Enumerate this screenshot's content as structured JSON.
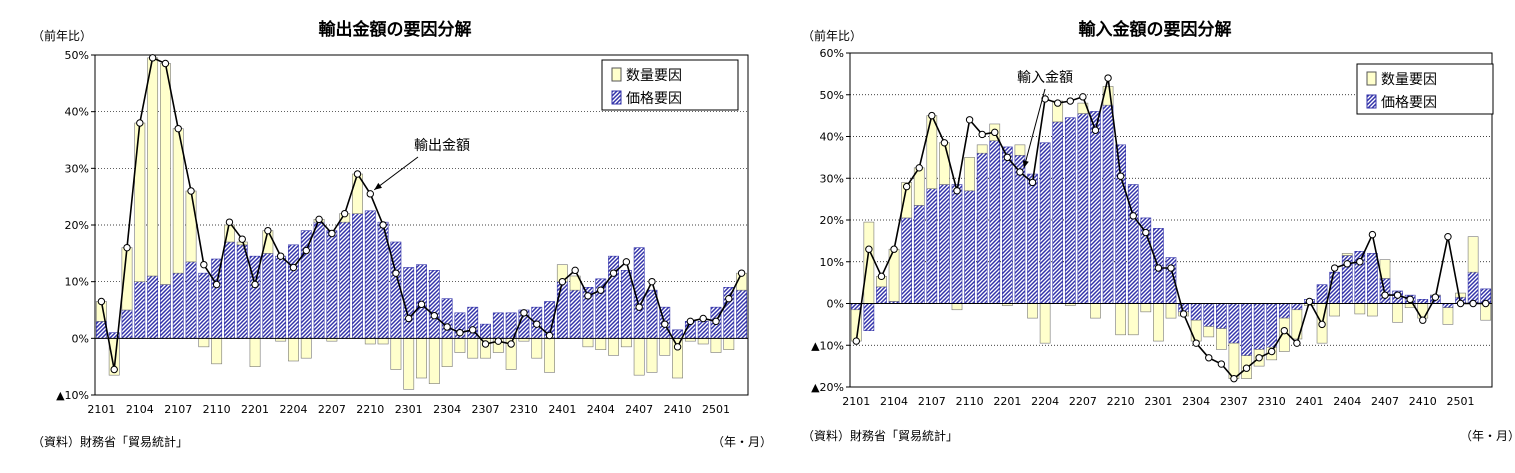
{
  "chart_data": [
    {
      "type": "bar",
      "title": "輸出金額の要因分解",
      "ylabel": "（前年比）",
      "xlabel": "（年・月）",
      "source": "（資料）財務省「貿易統計」",
      "annotation": "輸出金額",
      "ylim": [
        -10,
        50
      ],
      "yticks": [
        50,
        40,
        30,
        20,
        10,
        0,
        -10
      ],
      "ytick_labels": [
        "50%",
        "40%",
        "30%",
        "20%",
        "10%",
        "0%",
        "▲10%"
      ],
      "xtick_labels": [
        "2101",
        "2104",
        "2107",
        "2110",
        "2201",
        "2204",
        "2207",
        "2210",
        "2301",
        "2304",
        "2307",
        "2310",
        "2401",
        "2404",
        "2407",
        "2410",
        "2501"
      ],
      "legend": [
        "数量要因",
        "価格要因"
      ],
      "legend_position": "top-right",
      "grid": true,
      "colors": {
        "quantity": "#FFFFCC",
        "price": "#3333AA",
        "line": "#000000"
      },
      "categories": [
        "2101",
        "2102",
        "2103",
        "2104",
        "2105",
        "2106",
        "2107",
        "2108",
        "2109",
        "2110",
        "2111",
        "2112",
        "2201",
        "2202",
        "2203",
        "2204",
        "2205",
        "2206",
        "2207",
        "2208",
        "2209",
        "2210",
        "2211",
        "2212",
        "2301",
        "2302",
        "2303",
        "2304",
        "2305",
        "2306",
        "2307",
        "2308",
        "2309",
        "2310",
        "2311",
        "2312",
        "2401",
        "2402",
        "2403",
        "2404",
        "2405",
        "2406",
        "2407",
        "2408",
        "2409",
        "2410",
        "2411",
        "2412",
        "2501",
        "2502",
        "2503"
      ],
      "series": [
        {
          "name": "数量要因",
          "values": [
            3.5,
            -6.5,
            11.0,
            28.0,
            38.5,
            39.0,
            25.5,
            12.5,
            -1.5,
            -4.5,
            3.0,
            0.5,
            -5.0,
            4.0,
            -0.5,
            -4.0,
            -3.5,
            0.5,
            -0.5,
            1.5,
            7.0,
            -1.0,
            -1.0,
            -5.5,
            -9.0,
            -7.0,
            -8.0,
            -5.0,
            -2.5,
            -3.5,
            -3.5,
            -2.5,
            -5.5,
            -0.5,
            -3.5,
            -6.0,
            3.0,
            2.5,
            -1.5,
            -2.0,
            -3.0,
            -1.5,
            -6.5,
            -6.0,
            -3.0,
            -7.0,
            -0.5,
            -1.0,
            -2.5,
            -2.0,
            3.0
          ]
        },
        {
          "name": "価格要因",
          "values": [
            3.0,
            1.0,
            5.0,
            10.0,
            11.0,
            9.5,
            11.5,
            13.5,
            11.5,
            14.0,
            17.0,
            16.5,
            14.5,
            15.0,
            14.5,
            16.5,
            19.0,
            20.5,
            19.0,
            20.5,
            22.0,
            22.5,
            20.5,
            17.0,
            12.5,
            13.0,
            12.0,
            7.0,
            4.5,
            5.5,
            2.5,
            4.5,
            4.5,
            5.0,
            5.5,
            6.5,
            10.0,
            8.5,
            9.0,
            10.5,
            14.5,
            12.0,
            16.0,
            8.5,
            5.5,
            1.5,
            3.0,
            3.0,
            5.5,
            9.0,
            8.5
          ]
        },
        {
          "name": "輸出金額",
          "values": [
            6.5,
            -5.5,
            16.0,
            38.0,
            49.5,
            48.5,
            37.0,
            26.0,
            13.0,
            9.5,
            20.5,
            17.5,
            9.5,
            19.0,
            14.5,
            12.5,
            15.5,
            21.0,
            18.5,
            22.0,
            29.0,
            25.5,
            20.0,
            11.5,
            3.5,
            6.0,
            4.0,
            2.0,
            1.0,
            1.5,
            -1.0,
            -0.5,
            -1.0,
            4.5,
            2.5,
            0.5,
            10.0,
            12.0,
            7.5,
            8.5,
            11.5,
            13.5,
            5.5,
            10.0,
            2.5,
            -1.5,
            3.0,
            3.5,
            3.0,
            7.0,
            11.5
          ]
        }
      ]
    },
    {
      "type": "bar",
      "title": "輸入金額の要因分解",
      "ylabel": "（前年比）",
      "xlabel": "（年・月）",
      "source": "（資料）財務省「貿易統計」",
      "annotation": "輸入金額",
      "ylim": [
        -20,
        60
      ],
      "yticks": [
        60,
        50,
        40,
        30,
        20,
        10,
        0,
        -10,
        -20
      ],
      "ytick_labels": [
        "60%",
        "50%",
        "40%",
        "30%",
        "20%",
        "10%",
        "0%",
        "▲10%",
        "▲20%"
      ],
      "xtick_labels": [
        "2101",
        "2104",
        "2107",
        "2110",
        "2201",
        "2204",
        "2207",
        "2210",
        "2301",
        "2304",
        "2307",
        "2310",
        "2401",
        "2404",
        "2407",
        "2410",
        "2501"
      ],
      "legend": [
        "数量要因",
        "価格要因"
      ],
      "legend_position": "top-right",
      "grid": true,
      "colors": {
        "quantity": "#FFFFCC",
        "price": "#3333AA",
        "line": "#000000"
      },
      "categories": [
        "2101",
        "2102",
        "2103",
        "2104",
        "2105",
        "2106",
        "2107",
        "2108",
        "2109",
        "2110",
        "2111",
        "2112",
        "2201",
        "2202",
        "2203",
        "2204",
        "2205",
        "2206",
        "2207",
        "2208",
        "2209",
        "2210",
        "2211",
        "2212",
        "2301",
        "2302",
        "2303",
        "2304",
        "2305",
        "2306",
        "2307",
        "2308",
        "2309",
        "2310",
        "2311",
        "2312",
        "2401",
        "2402",
        "2403",
        "2404",
        "2405",
        "2406",
        "2407",
        "2408",
        "2409",
        "2410",
        "2411",
        "2412",
        "2501",
        "2502",
        "2503"
      ],
      "series": [
        {
          "name": "数量要因",
          "values": [
            -7.5,
            19.5,
            2.5,
            12.5,
            8.5,
            9.0,
            17.5,
            10.0,
            -1.5,
            8.0,
            2.0,
            4.0,
            -0.5,
            2.5,
            -3.5,
            -9.5,
            5.0,
            -0.5,
            2.5,
            -3.5,
            4.5,
            -7.5,
            -7.5,
            -2.0,
            -9.0,
            -3.5,
            -1.0,
            -5.0,
            -2.5,
            -5.0,
            -8.5,
            -5.5,
            -4.0,
            -3.0,
            -8.0,
            -7.0,
            -0.5,
            -9.5,
            -3.0,
            0.5,
            -2.5,
            -3.0,
            4.5,
            -4.5,
            -1.0,
            -3.5,
            0.0,
            -4.0,
            1.0,
            8.5,
            -4.0
          ]
        },
        {
          "name": "価格要因",
          "values": [
            -1.5,
            -6.5,
            4.0,
            0.5,
            20.5,
            23.5,
            27.5,
            28.5,
            28.5,
            27.0,
            36.0,
            39.0,
            37.5,
            35.5,
            31.0,
            38.5,
            43.5,
            44.5,
            45.5,
            46.0,
            47.5,
            38.0,
            28.5,
            20.5,
            18.0,
            11.0,
            -2.0,
            -4.0,
            -5.5,
            -6.0,
            -9.5,
            -12.5,
            -11.0,
            -10.5,
            -3.5,
            -1.5,
            1.0,
            4.5,
            7.5,
            11.5,
            12.5,
            12.0,
            6.0,
            3.0,
            2.0,
            1.0,
            2.0,
            -1.0,
            1.5,
            7.5,
            3.5
          ]
        },
        {
          "name": "輸入金額",
          "values": [
            -9.0,
            13.0,
            6.5,
            13.0,
            28.0,
            32.5,
            45.0,
            38.5,
            27.0,
            44.0,
            40.5,
            41.0,
            35.0,
            31.5,
            29.0,
            49.0,
            48.0,
            48.5,
            49.5,
            41.5,
            54.0,
            30.5,
            21.0,
            17.0,
            8.5,
            8.5,
            -2.5,
            -9.5,
            -13.0,
            -14.5,
            -18.0,
            -15.5,
            -13.0,
            -11.5,
            -6.5,
            -9.5,
            0.5,
            -5.0,
            8.5,
            9.5,
            10.0,
            16.5,
            2.0,
            2.0,
            1.0,
            -4.0,
            1.5,
            16.0,
            0.0,
            0.0,
            0.0
          ]
        }
      ]
    }
  ]
}
